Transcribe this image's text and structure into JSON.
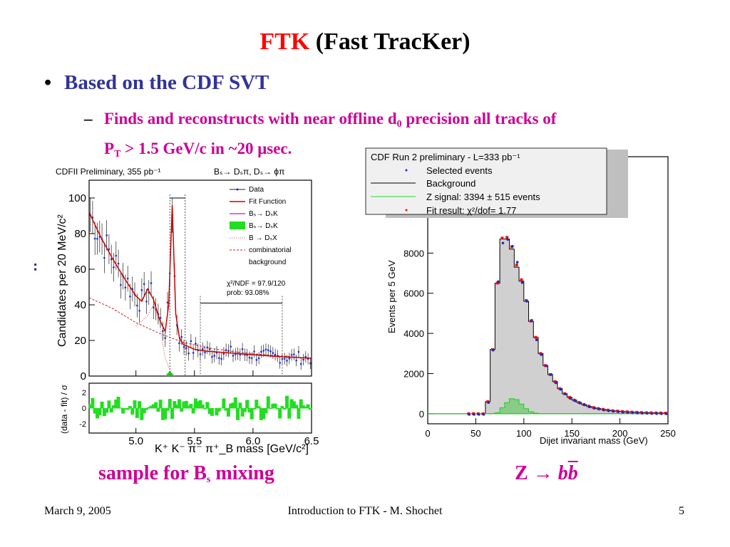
{
  "slide": {
    "title_red": "FTK",
    "title_rest": "(Fast TracKer)",
    "bullet": "Based on the CDF SVT",
    "sub_line1": "Finds and reconstructs with near offline d",
    "sub_line1_sub": "0",
    "sub_line1_end": "precision all tracks of",
    "sub_line2_a": "P",
    "sub_line2_sub": "T",
    "sub_line2_b": "> 1.5 GeV/c in ~20 μsec.",
    "colon": ":",
    "caption_left_a": "sample for B",
    "caption_left_sub": "s",
    "caption_left_b": "mixing",
    "caption_right_a": "Z →",
    "caption_right_b1": "b",
    "caption_right_b2": "b",
    "footer_date": "March 9, 2005",
    "footer_mid": "Introduction to FTK - M. Shochet",
    "footer_num": "5"
  },
  "colors": {
    "title_red": "#ff0000",
    "bullet_blue": "#333399",
    "magenta": "#cc0099"
  },
  "chart_data": [
    {
      "type": "line",
      "title": "CDFII Preliminary, 355 pb⁻¹",
      "subtitle": "Bₛ→ Dₛπ, Dₛ→ ϕπ",
      "xlabel": "K⁺ K⁻ π⁻ π⁺_B mass [GeV/c²]",
      "ylabel": "Candidates per 20 MeV/c²",
      "residual_ylabel": "(data - fit) / σ",
      "xlim": [
        4.6,
        6.5
      ],
      "ylim": [
        0,
        110
      ],
      "xticks": [
        "5.0",
        "5.5",
        "6.0",
        "6.5"
      ],
      "yticks": [
        "0",
        "20",
        "40",
        "60",
        "80",
        "100"
      ],
      "residual_ticks": [
        "2",
        "0",
        "-2"
      ],
      "legend": [
        "Data",
        "Fit Function",
        "Bₛ→ DₛK",
        "Bₛ→ DₛK",
        "B → DₛX",
        "combinatorial",
        "background"
      ],
      "annotations": [
        "χ²/NDF = 97.9/120",
        "prob: 93.08%"
      ],
      "series": [
        {
          "name": "Fit Function",
          "x": [
            4.6,
            4.7,
            4.8,
            4.9,
            5.0,
            5.05,
            5.1,
            5.15,
            5.2,
            5.25,
            5.28,
            5.31,
            5.34,
            5.37,
            5.4,
            5.5,
            5.6,
            5.8,
            6.0,
            6.2,
            6.5
          ],
          "y": [
            92,
            78,
            66,
            55,
            45,
            42,
            49,
            43,
            32,
            25,
            40,
            96,
            35,
            22,
            18,
            15,
            14,
            13,
            12,
            11,
            10
          ]
        },
        {
          "name": "combinatorial background",
          "x": [
            4.6,
            4.8,
            5.0,
            5.2,
            5.4,
            5.6,
            5.8,
            6.0,
            6.2,
            6.5
          ],
          "y": [
            44,
            38,
            30,
            24,
            19,
            16,
            14,
            12.5,
            11.5,
            10
          ]
        }
      ]
    },
    {
      "type": "bar",
      "legend_title": "CDF Run 2 preliminary - L=333 pb⁻¹",
      "legend": [
        "Selected events",
        "Background",
        "Z signal: 3394 ± 515 events",
        "Fit result: χ²/dof= 1.77"
      ],
      "xlabel": "Dijet invariant mass (GeV)",
      "ylabel": "Events per 5 GeV",
      "xlim": [
        0,
        250
      ],
      "ylim": [
        -500,
        12800
      ],
      "xticks": [
        "0",
        "50",
        "100",
        "150",
        "200",
        "250"
      ],
      "yticks": [
        "0",
        "2000",
        "4000",
        "6000",
        "8000"
      ],
      "bin_width": 5,
      "x": [
        40,
        45,
        50,
        55,
        60,
        65,
        70,
        75,
        80,
        85,
        90,
        95,
        100,
        105,
        110,
        115,
        120,
        125,
        130,
        135,
        140,
        145,
        150,
        155,
        160,
        165,
        170,
        175,
        180,
        185,
        190,
        195,
        200,
        205,
        210,
        215,
        220,
        225,
        230,
        235,
        240,
        245
      ],
      "background": [
        0,
        0,
        0,
        0,
        600,
        3200,
        6500,
        8700,
        8700,
        8200,
        7300,
        6600,
        5600,
        4600,
        3800,
        3000,
        2400,
        1950,
        1600,
        1250,
        1000,
        820,
        680,
        560,
        460,
        380,
        310,
        260,
        220,
        180,
        150,
        130,
        110,
        95,
        80,
        70,
        60,
        52,
        45,
        40,
        35,
        30
      ],
      "signal": [
        0,
        0,
        0,
        0,
        0,
        0,
        50,
        300,
        550,
        750,
        700,
        480,
        250,
        100,
        30,
        0,
        0,
        0,
        0,
        0,
        0,
        0,
        0,
        0,
        0,
        0,
        0,
        0,
        0,
        0,
        0,
        0,
        0,
        0,
        0,
        0,
        0,
        0,
        0,
        0,
        0,
        0
      ]
    }
  ]
}
